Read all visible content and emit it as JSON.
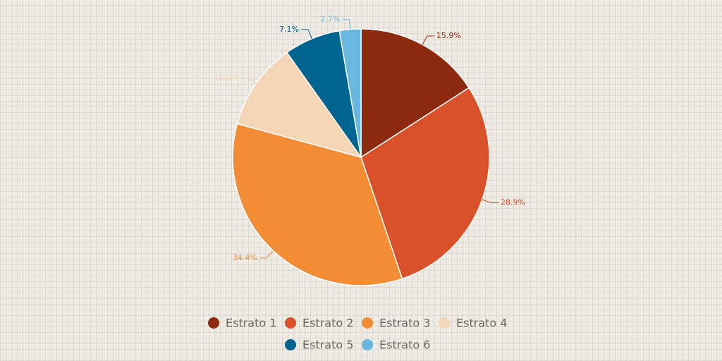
{
  "chart_data": {
    "type": "pie",
    "categories": [
      "Estrato 1",
      "Estrato 2",
      "Estrato 3",
      "Estrato 4",
      "Estrato 5",
      "Estrato 6"
    ],
    "values": [
      15.9,
      28.9,
      34.4,
      11.0,
      7.1,
      2.7
    ],
    "value_labels": [
      "15.9%",
      "28.9%",
      "34.4%",
      "11.0%",
      "7.1%",
      "2.7%"
    ],
    "colors": [
      "#8b2a0e",
      "#d9512a",
      "#f28c35",
      "#f4d5b5",
      "#006591",
      "#6ab7e0"
    ],
    "legend": "bottom"
  }
}
